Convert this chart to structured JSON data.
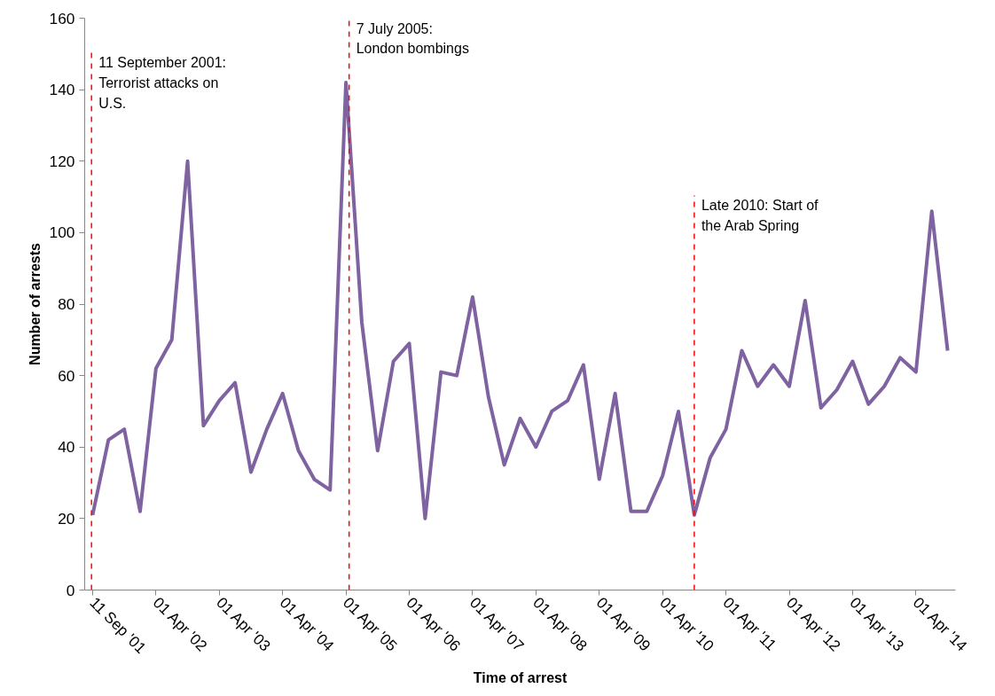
{
  "chart_data": {
    "type": "line",
    "xlabel": "Time of arrest",
    "ylabel": "Number of arrests",
    "categories": [
      "11 Sep '01",
      null,
      null,
      null,
      "01 Apr '02",
      null,
      null,
      null,
      "01 Apr '03",
      null,
      null,
      null,
      "01 Apr '04",
      null,
      null,
      null,
      "01 Apr '05",
      null,
      null,
      null,
      "01 Apr '06",
      null,
      null,
      null,
      "01 Apr '07",
      null,
      null,
      null,
      "01 Apr '08",
      null,
      null,
      null,
      "01 Apr '09",
      null,
      null,
      null,
      "01 Apr '10",
      null,
      null,
      null,
      "01 Apr '11",
      null,
      null,
      null,
      "01 Apr '12",
      null,
      null,
      null,
      "01 Apr '13",
      null,
      null,
      null,
      "01 Apr '14",
      null,
      null
    ],
    "series": [
      {
        "color": "#7f63a1",
        "values": [
          21,
          42,
          45,
          22,
          62,
          70,
          120,
          46,
          53,
          58,
          33,
          45,
          55,
          39,
          31,
          28,
          142,
          75,
          39,
          64,
          69,
          20,
          61,
          60,
          82,
          54,
          35,
          48,
          40,
          50,
          53,
          63,
          31,
          55,
          22,
          22,
          32,
          50,
          21,
          37,
          45,
          67,
          57,
          63,
          57,
          81,
          51,
          56,
          64,
          52,
          57,
          65,
          61,
          106,
          67
        ]
      }
    ],
    "ylim": [
      0,
      160
    ],
    "yticks": [
      0,
      20,
      40,
      60,
      80,
      100,
      120,
      140,
      160
    ],
    "annotations": [
      "11 September 2001:\nTerrorist attacks on\nU.S.",
      "7 July 2005:\nLondon bombings",
      "Late 2010: Start of\nthe Arab Spring"
    ],
    "marker": "none",
    "line_style": "solid"
  }
}
